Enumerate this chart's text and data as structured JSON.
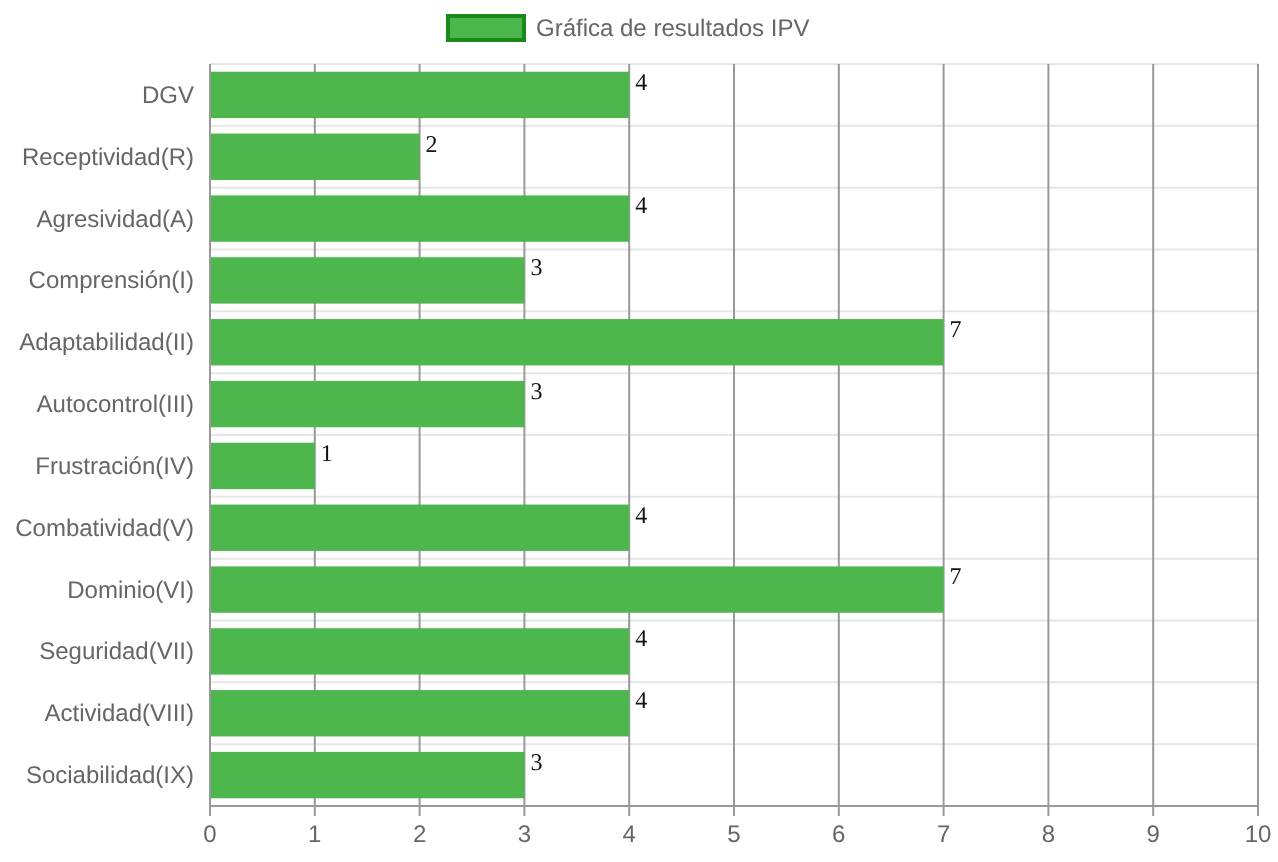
{
  "chart_data": {
    "type": "bar",
    "orientation": "horizontal",
    "categories": [
      "DGV",
      "Receptividad(R)",
      "Agresividad(A)",
      "Comprensión(I)",
      "Adaptabilidad(II)",
      "Autocontrol(III)",
      "Frustración(IV)",
      "Combatividad(V)",
      "Dominio(VI)",
      "Seguridad(VII)",
      "Actividad(VIII)",
      "Sociabilidad(IX)"
    ],
    "series": [
      {
        "name": "Gráfica de resultados IPV",
        "color": "#4db64d",
        "values": [
          4,
          2,
          4,
          3,
          7,
          3,
          1,
          4,
          7,
          4,
          4,
          3
        ]
      }
    ],
    "xlim": [
      0,
      10
    ],
    "xticks": [
      0,
      1,
      2,
      3,
      4,
      5,
      6,
      7,
      8,
      9,
      10
    ],
    "grid": true,
    "legend": "top",
    "data_labels": true
  }
}
